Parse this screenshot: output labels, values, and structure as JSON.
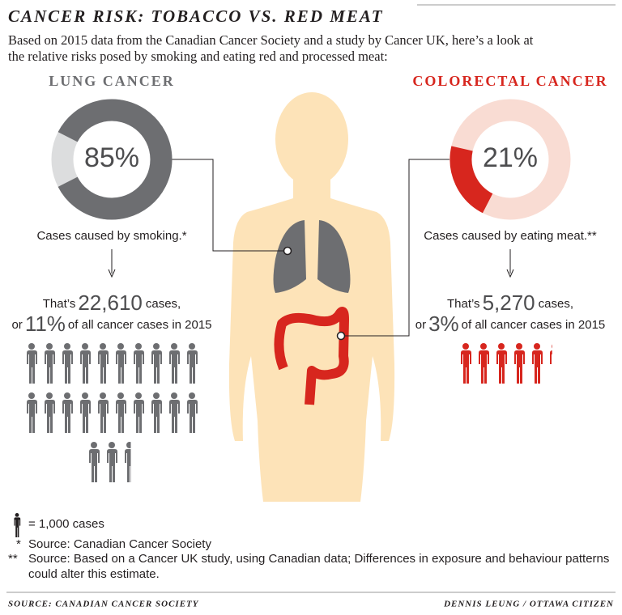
{
  "header": {
    "title": "CANCER RISK: TOBACCO VS. RED MEAT",
    "subtitle": [
      "Based on 2015 data from the Canadian Cancer Society and a study by Cancer UK, here’s a look at",
      "the relative risks posed by smoking and eating red and processed meat:"
    ]
  },
  "chart_data": [
    {
      "type": "donut",
      "title": "LUNG CANCER",
      "values": [
        85
      ],
      "value_labels": [
        "85%"
      ],
      "color": "#6d6e71",
      "track_color": "#dcddde",
      "caption": "Cases caused by smoking.*"
    },
    {
      "type": "donut",
      "title": "COLORECTAL CANCER",
      "values": [
        21
      ],
      "value_labels": [
        "21%"
      ],
      "color": "#d7261e",
      "track_color": "#f9dcd3",
      "caption": "Cases caused by eating meat.**"
    },
    {
      "type": "pictograph",
      "values": [
        22610
      ],
      "value_labels": [
        "22,610"
      ],
      "color": "#6d6e71",
      "text": [
        "That’s",
        "cases,"
      ],
      "share": {
        "values": [
          11
        ],
        "value_labels": [
          "11%"
        ],
        "text": [
          "or",
          "of all cancer cases in 2015"
        ]
      }
    },
    {
      "type": "pictograph",
      "values": [
        5270
      ],
      "value_labels": [
        "5,270"
      ],
      "color": "#d7261e",
      "text": [
        "That’s",
        "cases,"
      ],
      "share": {
        "values": [
          3
        ],
        "value_labels": [
          "3%"
        ],
        "text": [
          "or",
          "of all cancer cases in 2015"
        ]
      }
    }
  ],
  "key": {
    "value": 1000,
    "label": "= 1,000 cases"
  },
  "notes": [
    {
      "mark": "*",
      "text": "Source: Canadian Cancer Society"
    },
    {
      "mark": "**",
      "text": [
        "Source: Based on a Cancer UK study, using Canadian data; Differences in exposure and behaviour patterns",
        "could alter this estimate."
      ]
    }
  ],
  "footer": {
    "source": "SOURCE: CANADIAN CANCER SOCIETY",
    "credit": "DENNIS LEUNG / OTTAWA CITIZEN"
  }
}
